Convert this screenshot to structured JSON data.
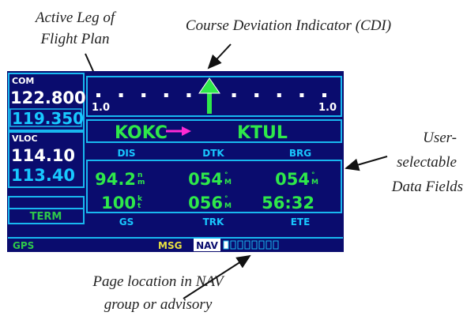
{
  "annotations": {
    "active_leg": [
      "Active Leg of",
      "Flight Plan"
    ],
    "cdi": "Course Deviation Indicator (CDI)",
    "data_fields": [
      "User-",
      "selectable",
      "Data Fields"
    ],
    "page_location": [
      "Page location in NAV",
      "group or advisory"
    ]
  },
  "screen": {
    "com": {
      "label": "COM",
      "active": "122.800",
      "standby": "119.350"
    },
    "vloc": {
      "label": "VLOC",
      "active": "114.10",
      "standby": "113.40"
    },
    "mode": "TERM",
    "cdi_scale": [
      "1.0",
      "1.0"
    ],
    "active_leg": {
      "from": "KOKC",
      "to": "KTUL"
    },
    "fields": [
      {
        "label": "DIS",
        "value": "94.2",
        "unit": [
          "n",
          "m"
        ]
      },
      {
        "label": "DTK",
        "value": "054",
        "unit": [
          "°",
          "M"
        ]
      },
      {
        "label": "BRG",
        "value": "054",
        "unit": [
          "°",
          "M"
        ]
      },
      {
        "label": "GS",
        "value": "100",
        "unit": [
          "k",
          "t"
        ]
      },
      {
        "label": "TRK",
        "value": "056",
        "unit": [
          "°",
          "M"
        ]
      },
      {
        "label": "ETE",
        "value": "56:32"
      }
    ],
    "status": {
      "source": "GPS",
      "message": "MSG",
      "page_group": "NAV"
    }
  }
}
